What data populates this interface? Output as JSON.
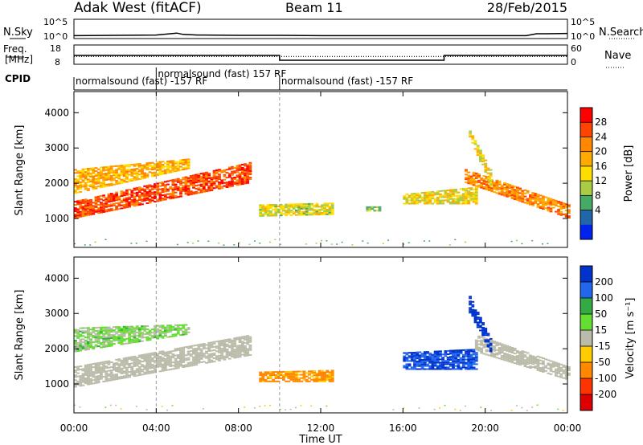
{
  "header": {
    "station": "Adak West (fitACF)",
    "beam": "Beam 11",
    "date": "28/Feb/2015"
  },
  "panels": {
    "nsky": {
      "label": "N.Sky",
      "tick_hi": "10^5",
      "tick_lo": "10^0"
    },
    "nsearch": {
      "label": "N.Search",
      "tick_hi": "10^5",
      "tick_lo": "10^0"
    },
    "freq": {
      "label_top": "Freq.",
      "label_bottom": "[MHz]",
      "tick_hi": "18",
      "tick_lo": "8"
    },
    "nave": {
      "label": "Nave",
      "tick_hi": "60",
      "tick_lo": "0"
    },
    "cpid": {
      "label": "CPID"
    }
  },
  "cpid_segments": [
    {
      "text": "normalsound (fast) -157 RF",
      "start_h": 0
    },
    {
      "text": "normalsound (fast) 157 RF",
      "start_h": 4
    },
    {
      "text": "normalsound (fast) -157 RF",
      "start_h": 10
    }
  ],
  "power_colorbar": {
    "title": "Power [dB]",
    "ticks": [
      "28",
      "24",
      "20",
      "16",
      "12",
      "8",
      "4"
    ],
    "colors": [
      "#ff0000",
      "#ff4400",
      "#ff8800",
      "#ffaa00",
      "#ffdd00",
      "#aacc44",
      "#44aa66",
      "#2266aa",
      "#0022ee"
    ]
  },
  "velocity_colorbar": {
    "title": "Velocity [m s⁻¹]",
    "ticks": [
      "200",
      "100",
      "50",
      "15",
      "-15",
      "-50",
      "-100",
      "-200"
    ],
    "colors": [
      "#0033cc",
      "#2266ee",
      "#33aa44",
      "#66dd33",
      "#bbbbaa",
      "#ffcc00",
      "#ff8800",
      "#ff3300",
      "#dd0000"
    ]
  },
  "chart_data": {
    "type": "heatmap",
    "xlabel": "Time UT",
    "x_ticks": [
      "00:00",
      "04:00",
      "08:00",
      "12:00",
      "16:00",
      "20:00",
      "00:00"
    ],
    "xlim_hours": [
      0,
      24
    ],
    "ylabel": "Slant Range [km]",
    "y_ticks": [
      1000,
      2000,
      3000,
      4000
    ],
    "ylim_km": [
      180,
      4600
    ],
    "noise_nsky": {
      "hours": [
        0,
        2,
        4,
        5,
        5.3,
        6,
        8,
        10,
        12,
        16,
        20,
        22,
        22.5,
        23,
        24
      ],
      "log10": [
        0.4,
        0.5,
        0.6,
        1.2,
        0.8,
        0.6,
        0.5,
        0.5,
        0.4,
        0.4,
        0.4,
        0.4,
        1.0,
        1.0,
        1.1
      ]
    },
    "freq_mhz": [
      {
        "from": 0,
        "to": 10,
        "value": 13.5
      },
      {
        "from": 10,
        "to": 18,
        "value": 10.5
      },
      {
        "from": 18,
        "to": 24,
        "value": 13.5
      }
    ],
    "nave": 23,
    "power_features": [
      {
        "name": "morning-band",
        "start_h": 0,
        "end_h": 8.5,
        "range_start_km": [
          1000,
          1500
        ],
        "range_end_km": [
          2000,
          2600
        ],
        "power_db": 26
      },
      {
        "name": "upper-echo",
        "start_h": 0,
        "end_h": 5.5,
        "range_start_km": [
          1700,
          2400
        ],
        "range_end_km": [
          2400,
          2700
        ],
        "power_db": 18
      },
      {
        "name": "midday-patch",
        "start_h": 9,
        "end_h": 12.5,
        "range_start_km": [
          1050,
          1400
        ],
        "range_end_km": [
          1100,
          1450
        ],
        "power_db": 12
      },
      {
        "name": "small-patch",
        "start_h": 14.2,
        "end_h": 14.8,
        "range_start_km": [
          1200,
          1350
        ],
        "range_end_km": [
          1200,
          1350
        ],
        "power_db": 10
      },
      {
        "name": "evening-echo",
        "start_h": 16,
        "end_h": 19.5,
        "range_start_km": [
          1400,
          1700
        ],
        "range_end_km": [
          1400,
          1900
        ],
        "power_db": 14
      },
      {
        "name": "late-band",
        "start_h": 19,
        "end_h": 24,
        "range_start_km": [
          2000,
          2400
        ],
        "range_end_km": [
          1000,
          1400
        ],
        "power_db": 22
      },
      {
        "name": "high-spike",
        "start_h": 19.2,
        "end_h": 20.2,
        "range_start_km": [
          3300,
          3500
        ],
        "range_end_km": [
          1900,
          2400
        ],
        "power_db": 14
      }
    ],
    "velocity_features": [
      {
        "name": "ground-scatter",
        "start_h": 0,
        "end_h": 8.5,
        "range_start_km": [
          900,
          1500
        ],
        "range_end_km": [
          1800,
          2400
        ],
        "velocity": 0
      },
      {
        "name": "upper-mixed",
        "start_h": 0,
        "end_h": 5.5,
        "range_start_km": [
          1900,
          2600
        ],
        "range_end_km": [
          2400,
          2700
        ],
        "velocity": 20
      },
      {
        "name": "midday-negative",
        "start_h": 9,
        "end_h": 12.5,
        "range_start_km": [
          1050,
          1350
        ],
        "range_end_km": [
          1050,
          1400
        ],
        "velocity": -40
      },
      {
        "name": "evening-positive",
        "start_h": 16,
        "end_h": 19.5,
        "range_start_km": [
          1400,
          1900
        ],
        "range_end_km": [
          1400,
          2000
        ],
        "velocity": 150
      },
      {
        "name": "late-ground",
        "start_h": 19.5,
        "end_h": 24,
        "range_start_km": [
          1900,
          2400
        ],
        "range_end_km": [
          1100,
          1500
        ],
        "velocity": 0
      },
      {
        "name": "spike-positive",
        "start_h": 19.2,
        "end_h": 20.2,
        "range_start_km": [
          3000,
          3500
        ],
        "range_end_km": [
          1900,
          2300
        ],
        "velocity": 180
      }
    ]
  }
}
